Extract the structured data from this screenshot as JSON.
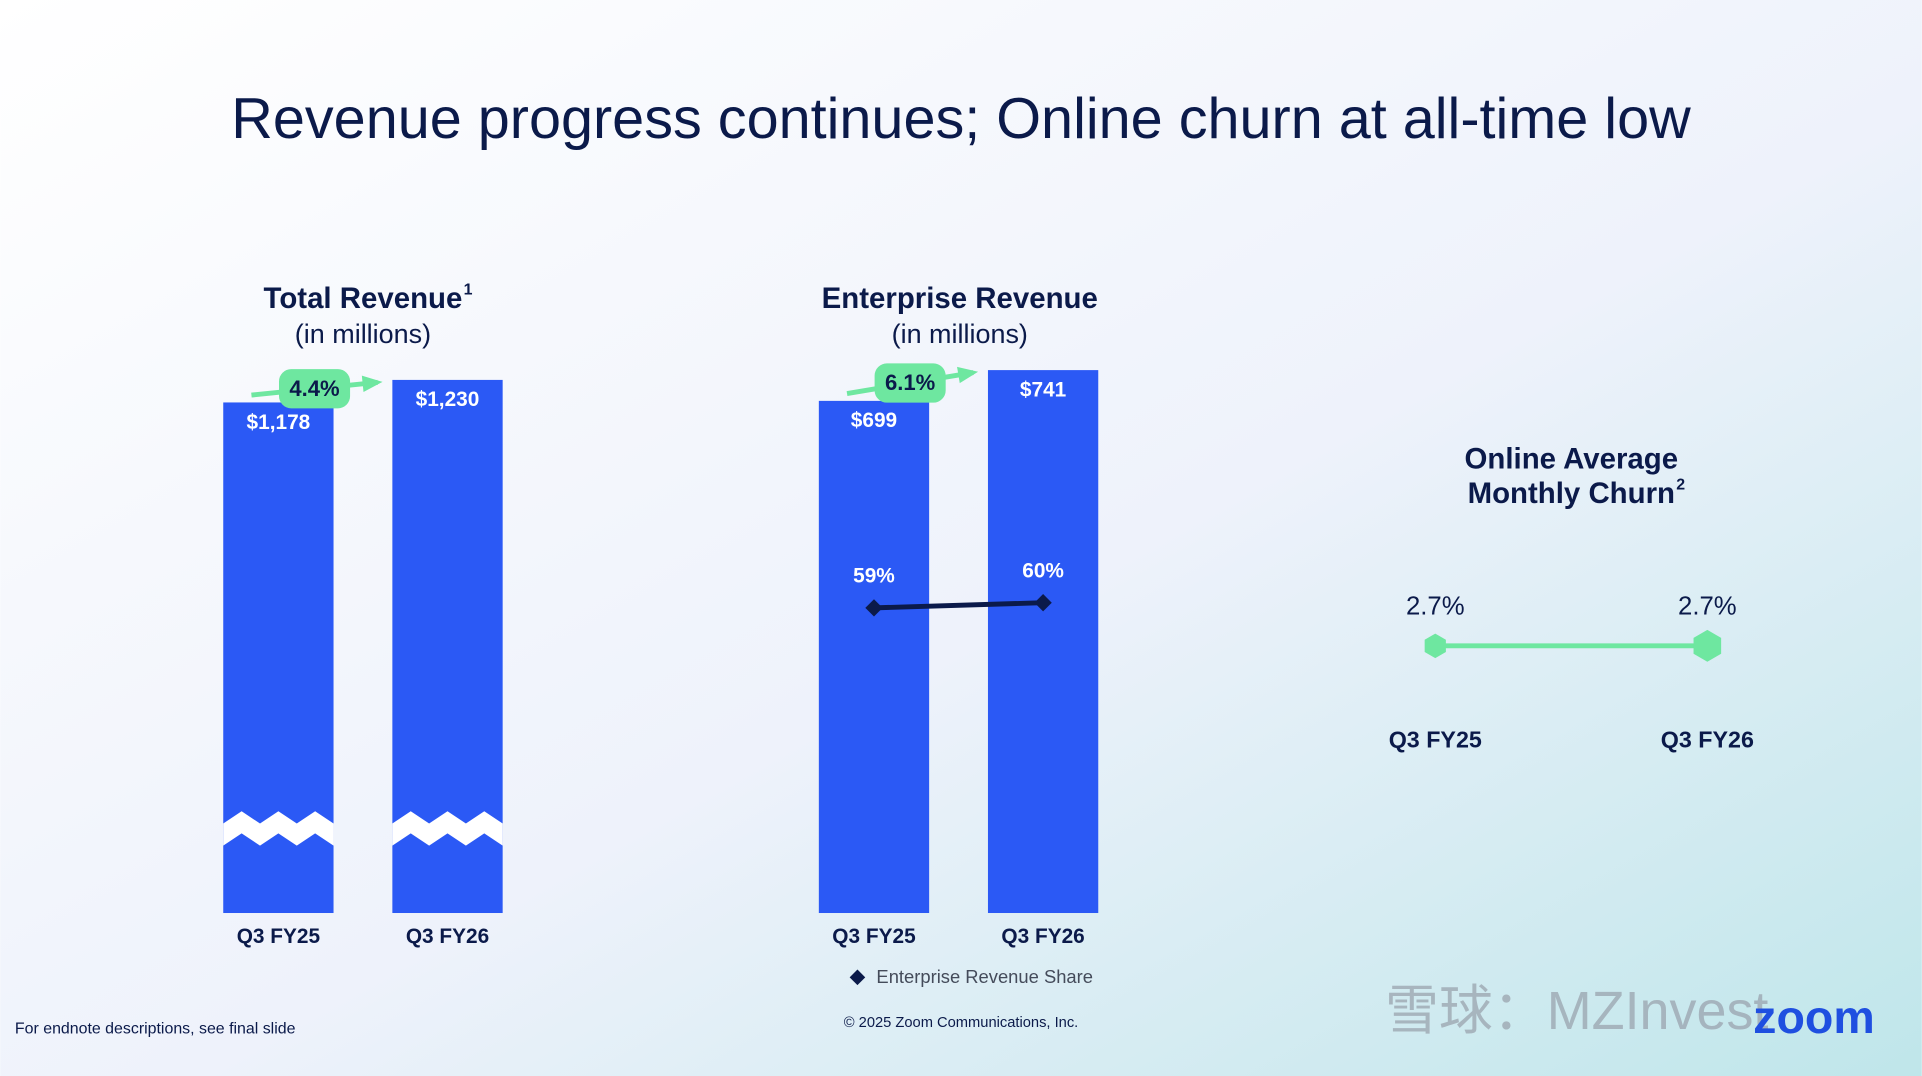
{
  "title": "Revenue progress continues; Online churn at all-time low",
  "chart_data": [
    {
      "type": "bar",
      "title": "Total Revenue",
      "title_superscript": "1",
      "subtitle": "(in millions)",
      "categories": [
        "Q3 FY25",
        "Q3 FY26"
      ],
      "values": [
        1178,
        1230
      ],
      "value_labels": [
        "$1,178",
        "$1,230"
      ],
      "color": "#2b59f5",
      "annotation": "4.4%",
      "axis_break": true
    },
    {
      "type": "bar",
      "title": "Enterprise Revenue",
      "subtitle": "(in millions)",
      "categories": [
        "Q3 FY25",
        "Q3 FY26"
      ],
      "values": [
        699,
        741
      ],
      "value_labels": [
        "$699",
        "$741"
      ],
      "color": "#2b59f5",
      "annotation": "6.1%",
      "series": [
        {
          "name": "Enterprise Revenue Share",
          "type": "line",
          "axis": "y2",
          "color": "#0b1a4a",
          "values": [
            59,
            60
          ],
          "value_labels": [
            "59%",
            "60%"
          ]
        }
      ]
    },
    {
      "type": "line",
      "title": [
        "Online Average",
        "Monthly Churn"
      ],
      "title_superscript": "2",
      "categories": [
        "Q3 FY25",
        "Q3 FY26"
      ],
      "values": [
        2.7,
        2.7
      ],
      "value_labels": [
        "2.7%",
        "2.7%"
      ],
      "color": "#6ee7a0"
    }
  ],
  "footnote": "For endnote descriptions, see final slide",
  "copyright": "© 2025 Zoom Communications, Inc.",
  "logo": "zoom",
  "watermark": "雪球：MZInvest"
}
